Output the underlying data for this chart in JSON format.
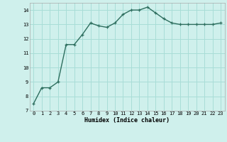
{
  "x": [
    0,
    1,
    2,
    3,
    4,
    5,
    6,
    7,
    8,
    9,
    10,
    11,
    12,
    13,
    14,
    15,
    16,
    17,
    18,
    19,
    20,
    21,
    22,
    23
  ],
  "y": [
    7.5,
    8.6,
    8.6,
    9.0,
    11.6,
    11.6,
    12.3,
    13.1,
    12.9,
    12.8,
    13.1,
    13.7,
    14.0,
    14.0,
    14.2,
    13.8,
    13.4,
    13.1,
    13.0,
    13.0,
    13.0,
    13.0,
    13.0,
    13.1
  ],
  "xlabel": "Humidex (Indice chaleur)",
  "ylim": [
    7,
    14.5
  ],
  "xlim": [
    -0.5,
    23.5
  ],
  "yticks": [
    7,
    8,
    9,
    10,
    11,
    12,
    13,
    14
  ],
  "xticks": [
    0,
    1,
    2,
    3,
    4,
    5,
    6,
    7,
    8,
    9,
    10,
    11,
    12,
    13,
    14,
    15,
    16,
    17,
    18,
    19,
    20,
    21,
    22,
    23
  ],
  "line_color": "#2d6e5e",
  "marker": "+",
  "bg_color": "#cff0ec",
  "grid_color": "#a8ddd7",
  "tick_fontsize": 5.0,
  "xlabel_fontsize": 6.0
}
